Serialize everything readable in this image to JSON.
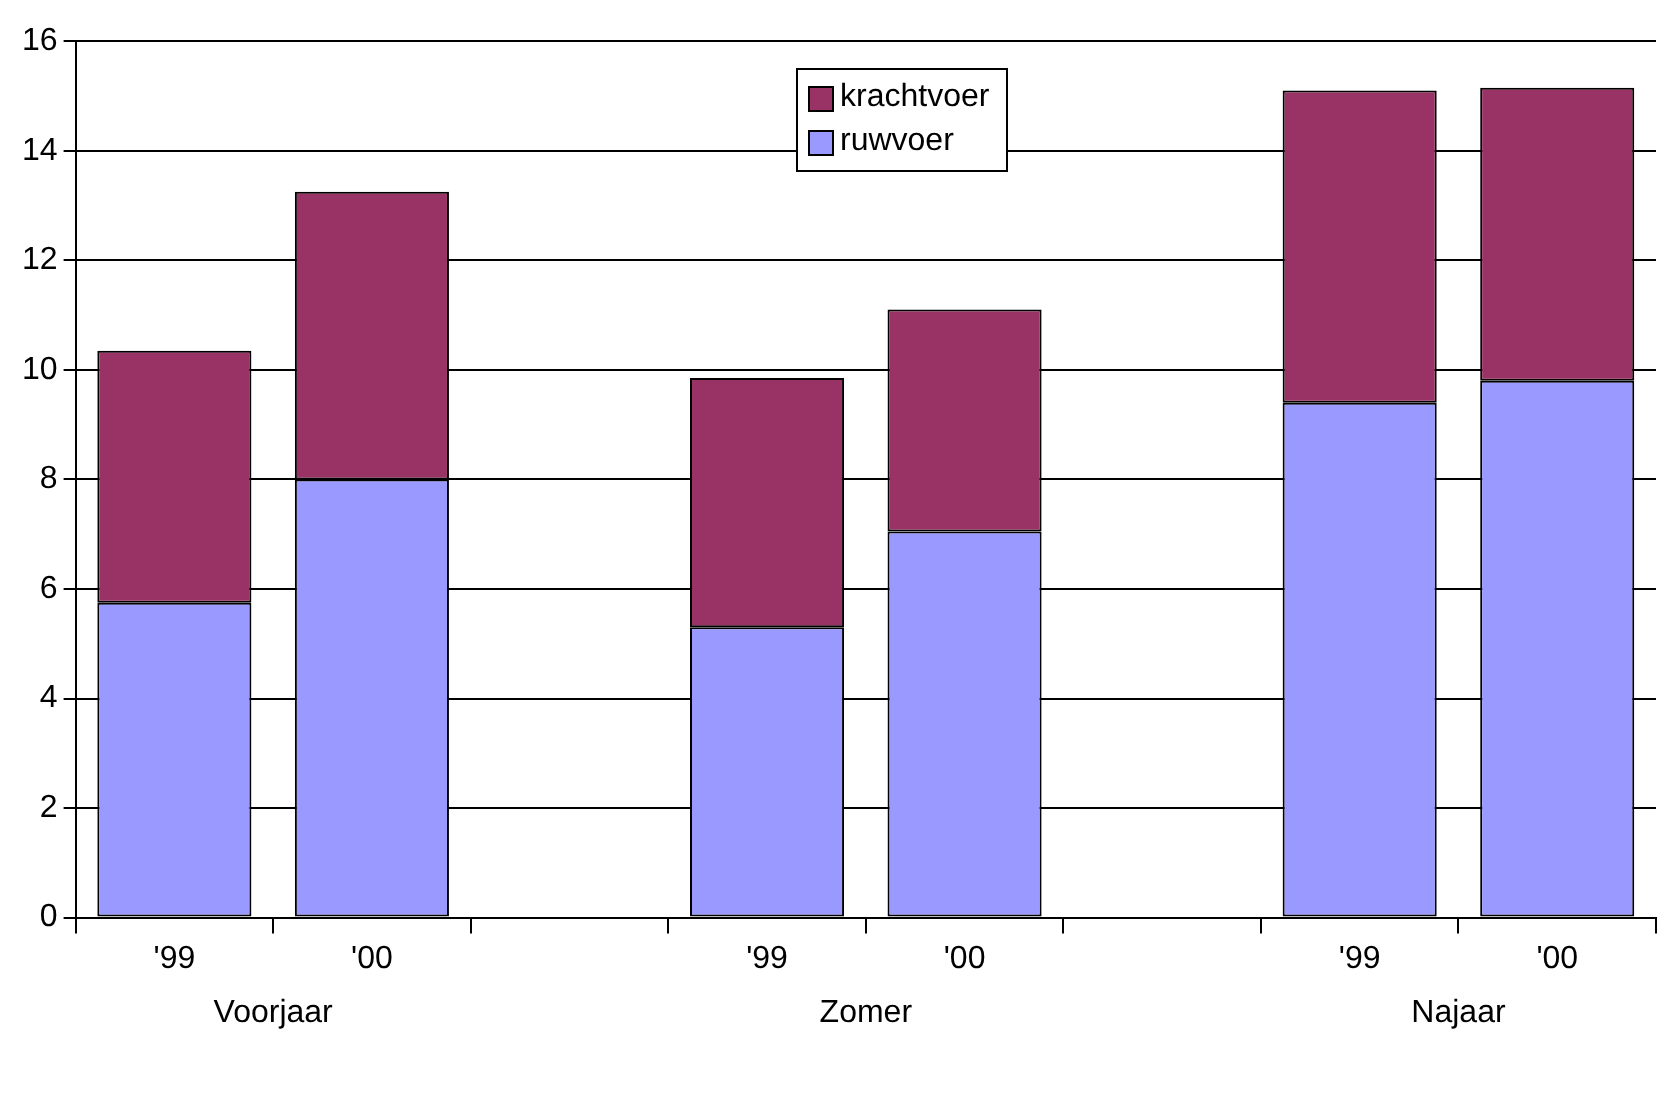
{
  "chart_data": {
    "type": "bar",
    "stacked": true,
    "categories": [
      "'99",
      "'00",
      null,
      "'99",
      "'00",
      null,
      "'99",
      "'00"
    ],
    "series": [
      {
        "name": "ruwvoer",
        "color": "#9999ff",
        "values": [
          5.75,
          8.0,
          null,
          5.3,
          7.05,
          null,
          9.4,
          9.8
        ]
      },
      {
        "name": "krachtvoer",
        "color": "#993366",
        "values": [
          4.6,
          5.25,
          null,
          4.55,
          4.05,
          null,
          5.7,
          5.35
        ]
      }
    ],
    "ylim": [
      0,
      16
    ],
    "yticks": [
      0,
      2,
      4,
      6,
      8,
      10,
      12,
      14,
      16
    ],
    "grid": "y",
    "legend": "top",
    "annotations": [
      "Voorjaar",
      "Zomer",
      "Najaar"
    ]
  }
}
